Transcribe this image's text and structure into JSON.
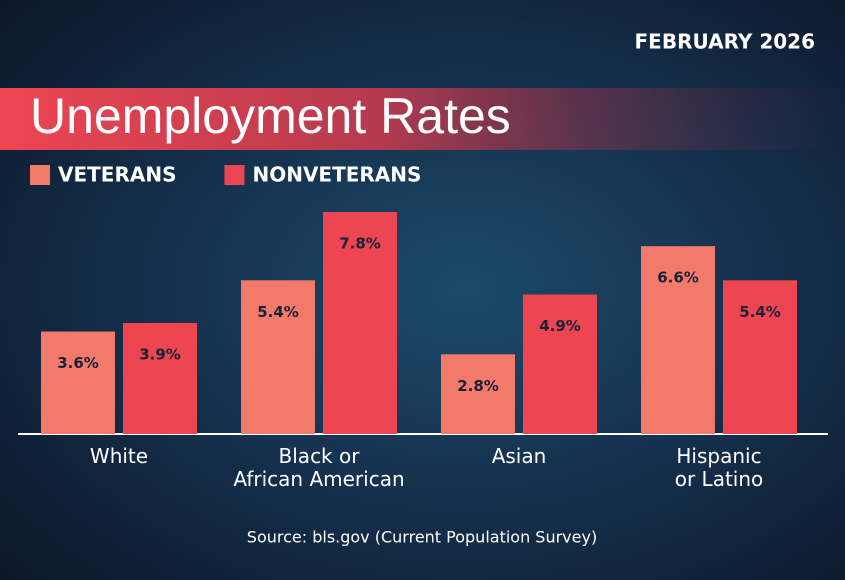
{
  "chart_data": {
    "type": "bar",
    "title": "Unemployment Rates",
    "date": "FEBRUARY 2026",
    "source": "Source: bls.gov (Current Population Survey)",
    "categories": [
      "White",
      "Black or\nAfrican American",
      "Asian",
      "Hispanic\nor Latino"
    ],
    "series": [
      {
        "name": "VETERANS",
        "color": "#f27a6b",
        "values": [
          3.6,
          5.4,
          2.8,
          6.6
        ],
        "value_labels": [
          "3.6%",
          "5.4%",
          "2.8%",
          "6.6%"
        ]
      },
      {
        "name": "NONVETERANS",
        "color": "#ee4552",
        "values": [
          3.9,
          7.8,
          4.9,
          5.4
        ],
        "value_labels": [
          "3.9%",
          "7.8%",
          "4.9%",
          "5.4%"
        ]
      }
    ]
  }
}
